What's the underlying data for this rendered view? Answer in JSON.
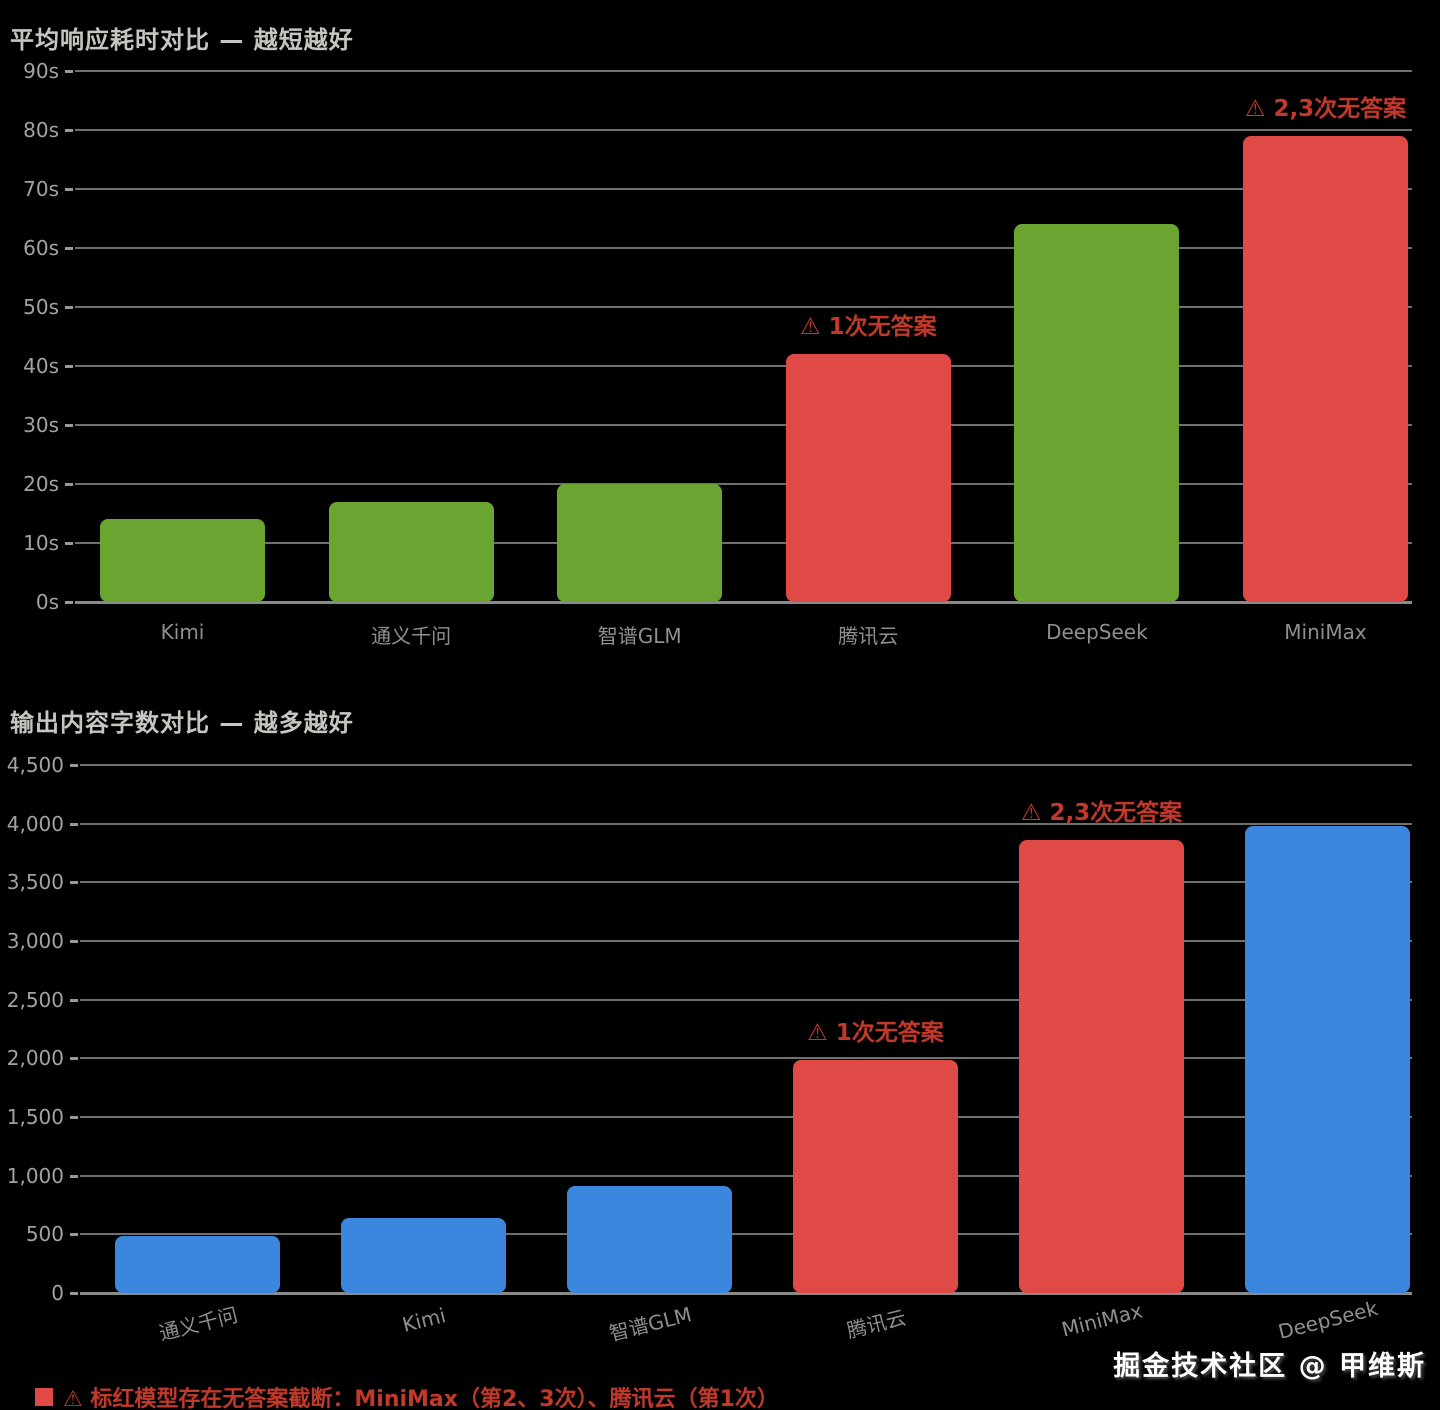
{
  "page": {
    "background_color": "#000000"
  },
  "colors": {
    "green_bar": "#6aa532",
    "red_bar": "#e04a46",
    "blue_bar": "#3a87dd",
    "annotation_red": "#c0392b",
    "title_gray": "#c6c5bf",
    "axis_label_gray": "#a3a29c"
  },
  "chart_data": [
    {
      "type": "bar",
      "title": "平均响应耗时对比 — 越短越好",
      "categories": [
        "Kimi",
        "通义千问",
        "智谱GLM",
        "腾讯云",
        "DeepSeek",
        "MiniMax"
      ],
      "values": [
        14,
        17,
        20,
        42,
        64,
        79
      ],
      "bar_colors": [
        "#6aa532",
        "#6aa532",
        "#6aa532",
        "#e04a46",
        "#6aa532",
        "#e04a46"
      ],
      "y_ticks": [
        "90s",
        "80s",
        "70s",
        "60s",
        "50s",
        "40s",
        "30s",
        "20s",
        "10s",
        "0s"
      ],
      "ylim": [
        0,
        90
      ],
      "grid": true,
      "legend_position": "none",
      "annotations": [
        {
          "bar_index": 3,
          "text": "⚠ 1次无答案"
        },
        {
          "bar_index": 5,
          "text": "⚠ 2,3次无答案"
        }
      ]
    },
    {
      "type": "bar",
      "title": "输出内容字数对比 — 越多越好",
      "categories": [
        "通义千问",
        "Kimi",
        "智谱GLM",
        "腾讯云",
        "MiniMax",
        "DeepSeek"
      ],
      "values": [
        490,
        640,
        915,
        1990,
        3860,
        3980
      ],
      "bar_colors": [
        "#3a87dd",
        "#3a87dd",
        "#3a87dd",
        "#e04a46",
        "#e04a46",
        "#3a87dd"
      ],
      "y_ticks": [
        "4,500",
        "4,000",
        "3,500",
        "3,000",
        "2,500",
        "2,000",
        "1,500",
        "1,000",
        "500",
        "0"
      ],
      "ylim": [
        0,
        4500
      ],
      "grid": true,
      "legend_position": "none",
      "annotations": [
        {
          "bar_index": 3,
          "text": "⚠ 1次无答案"
        },
        {
          "bar_index": 4,
          "text": "⚠ 2,3次无答案"
        }
      ]
    }
  ],
  "footnote": {
    "swatch_color": "#e04a46",
    "text": "⚠ 标红模型存在无答案截断：MiniMax（第2、3次）、腾讯云（第1次）"
  },
  "watermark": {
    "text": "掘金技术社区 @ 甲维斯"
  }
}
